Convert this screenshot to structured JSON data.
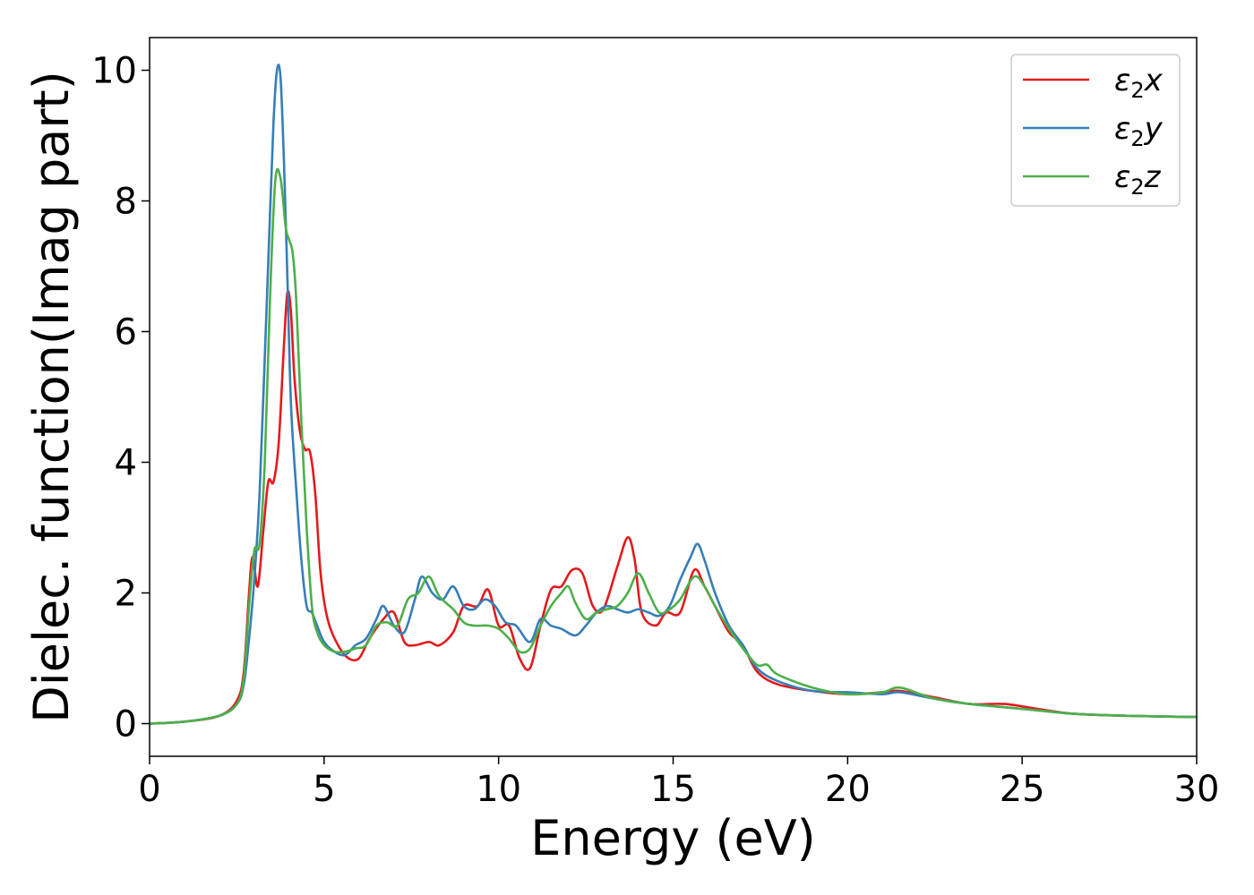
{
  "chart_data": {
    "type": "line",
    "title": "",
    "xlabel": "Energy (eV)",
    "ylabel": "Dielec. function(Imag part)",
    "xlim": [
      0,
      30
    ],
    "ylim": [
      -0.5,
      10.5
    ],
    "xticks": [
      0,
      5,
      10,
      15,
      20,
      25,
      30
    ],
    "yticks": [
      0,
      2,
      4,
      6,
      8,
      10
    ],
    "grid": false,
    "legend_position": "top-right",
    "series": [
      {
        "name": "ε₂x",
        "legend_symbol": "ε",
        "legend_subscript": "2",
        "legend_suffix": "x",
        "color": "#e41a1c",
        "x": [
          0,
          1,
          2,
          2.5,
          2.7,
          2.85,
          2.95,
          3.1,
          3.25,
          3.4,
          3.55,
          3.7,
          3.85,
          3.95,
          4.05,
          4.15,
          4.3,
          4.45,
          4.6,
          4.75,
          4.9,
          5.1,
          5.4,
          5.7,
          6.0,
          6.3,
          6.7,
          7.0,
          7.3,
          7.6,
          8.0,
          8.3,
          8.7,
          9.0,
          9.4,
          9.7,
          10.0,
          10.3,
          10.6,
          10.9,
          11.2,
          11.5,
          11.8,
          12.1,
          12.4,
          12.7,
          13.0,
          13.4,
          13.7,
          13.9,
          14.1,
          14.5,
          14.8,
          15.2,
          15.6,
          15.9,
          16.2,
          16.6,
          17.0,
          17.4,
          18.0,
          19.0,
          20.0,
          21.0,
          21.5,
          22.5,
          23.5,
          24.5,
          25.5,
          26.5,
          28.0,
          30.0
        ],
        "y": [
          0.0,
          0.03,
          0.12,
          0.35,
          0.8,
          2.0,
          2.55,
          2.1,
          2.9,
          3.7,
          3.7,
          4.3,
          5.8,
          6.6,
          6.3,
          5.3,
          4.5,
          4.2,
          4.15,
          3.5,
          2.3,
          1.6,
          1.2,
          1.0,
          1.0,
          1.3,
          1.6,
          1.7,
          1.25,
          1.2,
          1.25,
          1.2,
          1.4,
          1.8,
          1.8,
          2.05,
          1.5,
          1.5,
          1.0,
          0.85,
          1.5,
          2.05,
          2.1,
          2.35,
          2.3,
          1.8,
          1.75,
          2.4,
          2.85,
          2.5,
          1.7,
          1.5,
          1.7,
          1.7,
          2.35,
          2.1,
          1.8,
          1.4,
          1.2,
          0.8,
          0.6,
          0.5,
          0.45,
          0.48,
          0.5,
          0.4,
          0.3,
          0.3,
          0.22,
          0.15,
          0.12,
          0.1
        ]
      },
      {
        "name": "ε₂y",
        "legend_symbol": "ε",
        "legend_subscript": "2",
        "legend_suffix": "y",
        "color": "#377eb8",
        "x": [
          0,
          1,
          2,
          2.5,
          2.7,
          2.85,
          3.0,
          3.15,
          3.3,
          3.45,
          3.55,
          3.65,
          3.75,
          3.85,
          3.95,
          4.05,
          4.2,
          4.35,
          4.5,
          4.65,
          4.8,
          5.0,
          5.3,
          5.6,
          5.9,
          6.2,
          6.5,
          6.7,
          7.0,
          7.3,
          7.6,
          7.8,
          8.1,
          8.4,
          8.7,
          9.0,
          9.3,
          9.6,
          9.9,
          10.2,
          10.5,
          10.9,
          11.2,
          11.5,
          11.8,
          12.2,
          12.5,
          12.8,
          13.1,
          13.4,
          13.7,
          14.0,
          14.3,
          14.6,
          14.9,
          15.2,
          15.5,
          15.7,
          15.9,
          16.2,
          16.6,
          17.0,
          17.4,
          18.0,
          19.0,
          20.0,
          21.0,
          21.5,
          22.5,
          23.5,
          24.5,
          25.5,
          26.5,
          28.0,
          30.0
        ],
        "y": [
          0.0,
          0.03,
          0.12,
          0.3,
          0.6,
          1.3,
          2.2,
          3.5,
          5.6,
          7.8,
          9.2,
          10.0,
          9.9,
          8.6,
          6.8,
          4.9,
          3.6,
          2.5,
          1.8,
          1.7,
          1.5,
          1.25,
          1.1,
          1.05,
          1.2,
          1.3,
          1.6,
          1.8,
          1.5,
          1.4,
          1.9,
          2.25,
          2.0,
          1.9,
          2.1,
          1.8,
          1.75,
          1.9,
          1.8,
          1.55,
          1.5,
          1.25,
          1.6,
          1.5,
          1.45,
          1.35,
          1.5,
          1.7,
          1.8,
          1.75,
          1.7,
          1.75,
          1.7,
          1.65,
          1.8,
          2.2,
          2.55,
          2.75,
          2.5,
          2.0,
          1.5,
          1.2,
          0.85,
          0.65,
          0.5,
          0.48,
          0.45,
          0.48,
          0.38,
          0.3,
          0.25,
          0.2,
          0.15,
          0.12,
          0.1
        ]
      },
      {
        "name": "ε₂z",
        "legend_symbol": "ε",
        "legend_subscript": "2",
        "legend_suffix": "z",
        "color": "#4daf4a",
        "x": [
          0,
          1,
          2,
          2.5,
          2.7,
          2.85,
          3.0,
          3.15,
          3.3,
          3.45,
          3.6,
          3.75,
          3.9,
          4.0,
          4.1,
          4.2,
          4.35,
          4.5,
          4.65,
          4.8,
          5.0,
          5.3,
          5.6,
          5.9,
          6.2,
          6.5,
          6.8,
          7.1,
          7.4,
          7.7,
          8.0,
          8.3,
          8.7,
          9.0,
          9.3,
          9.7,
          10.0,
          10.3,
          10.6,
          10.9,
          11.2,
          11.5,
          11.8,
          12.0,
          12.2,
          12.5,
          12.8,
          13.1,
          13.4,
          13.7,
          14.0,
          14.3,
          14.6,
          14.9,
          15.2,
          15.6,
          15.9,
          16.2,
          16.6,
          17.0,
          17.4,
          17.7,
          18.0,
          19.0,
          20.0,
          21.0,
          21.5,
          22.5,
          23.5,
          24.5,
          25.5,
          26.5,
          28.0,
          30.0
        ],
        "y": [
          0.0,
          0.03,
          0.12,
          0.3,
          0.7,
          1.8,
          2.65,
          2.75,
          4.0,
          6.5,
          8.3,
          8.35,
          7.6,
          7.4,
          7.2,
          6.5,
          4.6,
          3.0,
          1.8,
          1.4,
          1.2,
          1.1,
          1.1,
          1.15,
          1.2,
          1.5,
          1.55,
          1.5,
          1.9,
          2.0,
          2.25,
          1.95,
          1.75,
          1.55,
          1.5,
          1.5,
          1.45,
          1.3,
          1.1,
          1.15,
          1.5,
          1.8,
          2.0,
          2.1,
          1.85,
          1.6,
          1.7,
          1.75,
          1.8,
          2.0,
          2.3,
          2.0,
          1.7,
          1.75,
          1.9,
          2.25,
          2.1,
          1.8,
          1.45,
          1.15,
          0.9,
          0.9,
          0.75,
          0.55,
          0.45,
          0.48,
          0.55,
          0.38,
          0.3,
          0.25,
          0.2,
          0.15,
          0.12,
          0.1
        ]
      }
    ]
  }
}
